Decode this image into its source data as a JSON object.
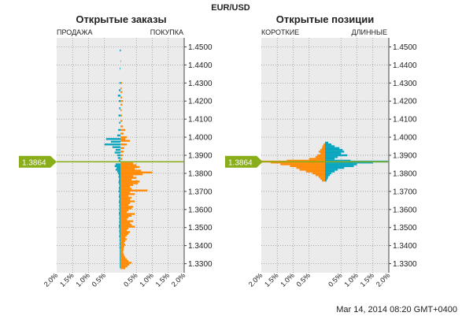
{
  "instrument": "EUR/USD",
  "timestamp": "Mar 14, 2014 08:20 GMT+0400",
  "current_price": "1.3864",
  "colors": {
    "teal": "#0aa5be",
    "orange": "#ff8c0a",
    "price_line": "#8aad1a",
    "panel_bg": "#ebebeb",
    "grid": "#8c8c8c"
  },
  "chart_data": [
    {
      "type": "bar",
      "orientation": "horizontal-diverging",
      "title": "Открытые заказы",
      "left_label": "ПРОДАЖА",
      "right_label": "ПОКУПКА",
      "y_ticks": [
        "1.4500",
        "1.4400",
        "1.4300",
        "1.4200",
        "1.4100",
        "1.4000",
        "1.3900",
        "1.3800",
        "1.3700",
        "1.3600",
        "1.3500",
        "1.3400",
        "1.3300"
      ],
      "x_ticks": [
        "2.0%",
        "1.5%",
        "1.0%",
        "0.5%",
        "0.5%",
        "1.0%",
        "1.5%",
        "2.0%"
      ],
      "ylim": [
        1.325,
        1.455
      ],
      "xlim_percent": [
        0,
        2.0
      ],
      "price_level": 1.3864,
      "grid": true,
      "series": [
        {
          "name": "ПРОДАЖА",
          "comment": "percent per price level, left side",
          "points": [
            [
              1.448,
              0.02
            ],
            [
              1.438,
              0.02
            ],
            [
              1.43,
              0.03
            ],
            [
              1.426,
              0.05
            ],
            [
              1.423,
              0.08
            ],
            [
              1.42,
              0.05
            ],
            [
              1.416,
              0.04
            ],
            [
              1.412,
              0.06
            ],
            [
              1.408,
              0.04
            ],
            [
              1.404,
              0.07
            ],
            [
              1.401,
              0.1
            ],
            [
              1.399,
              0.45
            ],
            [
              1.3975,
              0.3
            ],
            [
              1.396,
              0.5
            ],
            [
              1.3945,
              0.25
            ],
            [
              1.393,
              0.15
            ],
            [
              1.3915,
              0.18
            ],
            [
              1.39,
              0.1
            ],
            [
              1.3885,
              0.08
            ],
            [
              1.387,
              0.05
            ],
            [
              1.385,
              0.15
            ],
            [
              1.384,
              0.18
            ],
            [
              1.383,
              0.12
            ],
            [
              1.382,
              0.15
            ],
            [
              1.381,
              0.1
            ],
            [
              1.38,
              0.08
            ],
            [
              1.379,
              0.05
            ],
            [
              1.378,
              0.06
            ],
            [
              1.377,
              0.04
            ],
            [
              1.376,
              0.05
            ],
            [
              1.375,
              0.06
            ],
            [
              1.374,
              0.04
            ],
            [
              1.373,
              0.03
            ],
            [
              1.372,
              0.05
            ],
            [
              1.371,
              0.04
            ],
            [
              1.37,
              0.06
            ],
            [
              1.369,
              0.03
            ],
            [
              1.368,
              0.04
            ],
            [
              1.367,
              0.05
            ],
            [
              1.366,
              0.03
            ],
            [
              1.365,
              0.04
            ],
            [
              1.364,
              0.05
            ],
            [
              1.363,
              0.03
            ],
            [
              1.362,
              0.04
            ],
            [
              1.361,
              0.03
            ],
            [
              1.36,
              0.04
            ],
            [
              1.359,
              0.03
            ],
            [
              1.358,
              0.05
            ],
            [
              1.357,
              0.04
            ],
            [
              1.356,
              0.03
            ],
            [
              1.355,
              0.04
            ],
            [
              1.354,
              0.03
            ],
            [
              1.353,
              0.04
            ],
            [
              1.352,
              0.03
            ],
            [
              1.351,
              0.05
            ],
            [
              1.35,
              0.04
            ],
            [
              1.349,
              0.03
            ],
            [
              1.348,
              0.04
            ],
            [
              1.347,
              0.03
            ],
            [
              1.346,
              0.03
            ],
            [
              1.345,
              0.04
            ],
            [
              1.344,
              0.02
            ],
            [
              1.343,
              0.03
            ],
            [
              1.342,
              0.02
            ],
            [
              1.341,
              0.03
            ],
            [
              1.34,
              0.02
            ],
            [
              1.339,
              0.03
            ],
            [
              1.338,
              0.02
            ],
            [
              1.337,
              0.02
            ],
            [
              1.336,
              0.02
            ],
            [
              1.335,
              0.02
            ],
            [
              1.334,
              0.02
            ],
            [
              1.333,
              0.02
            ],
            [
              1.332,
              0.02
            ],
            [
              1.331,
              0.02
            ],
            [
              1.33,
              0.02
            ],
            [
              1.329,
              0.02
            ],
            [
              1.328,
              0.02
            ]
          ]
        },
        {
          "name": "ПОКУПКА",
          "comment": "percent per price level, right side",
          "points": [
            [
              1.448,
              0.02
            ],
            [
              1.442,
              0.02
            ],
            [
              1.43,
              0.05
            ],
            [
              1.427,
              0.04
            ],
            [
              1.425,
              0.06
            ],
            [
              1.422,
              0.05
            ],
            [
              1.42,
              0.08
            ],
            [
              1.418,
              0.06
            ],
            [
              1.415,
              0.04
            ],
            [
              1.412,
              0.05
            ],
            [
              1.409,
              0.06
            ],
            [
              1.406,
              0.08
            ],
            [
              1.404,
              0.15
            ],
            [
              1.402,
              0.1
            ],
            [
              1.4,
              0.2
            ],
            [
              1.399,
              0.15
            ],
            [
              1.398,
              0.3
            ],
            [
              1.396,
              0.2
            ],
            [
              1.394,
              0.12
            ],
            [
              1.392,
              0.1
            ],
            [
              1.39,
              0.08
            ],
            [
              1.388,
              0.06
            ],
            [
              1.3855,
              0.4
            ],
            [
              1.3845,
              0.5
            ],
            [
              1.3835,
              0.6
            ],
            [
              1.3825,
              0.45
            ],
            [
              1.3815,
              0.65
            ],
            [
              1.3805,
              1.0
            ],
            [
              1.3795,
              0.7
            ],
            [
              1.3785,
              0.4
            ],
            [
              1.3775,
              0.5
            ],
            [
              1.3765,
              0.35
            ],
            [
              1.3755,
              0.6
            ],
            [
              1.3745,
              0.55
            ],
            [
              1.3735,
              0.4
            ],
            [
              1.3725,
              0.3
            ],
            [
              1.3715,
              0.35
            ],
            [
              1.3705,
              0.85
            ],
            [
              1.3695,
              0.3
            ],
            [
              1.3685,
              0.45
            ],
            [
              1.3675,
              0.25
            ],
            [
              1.3665,
              0.35
            ],
            [
              1.3655,
              0.3
            ],
            [
              1.3645,
              0.45
            ],
            [
              1.3635,
              0.3
            ],
            [
              1.3625,
              0.25
            ],
            [
              1.3615,
              0.4
            ],
            [
              1.3605,
              0.35
            ],
            [
              1.3595,
              0.25
            ],
            [
              1.3585,
              0.2
            ],
            [
              1.3575,
              0.45
            ],
            [
              1.3565,
              0.35
            ],
            [
              1.3555,
              0.25
            ],
            [
              1.3545,
              0.2
            ],
            [
              1.3535,
              0.4
            ],
            [
              1.3525,
              0.3
            ],
            [
              1.3515,
              0.35
            ],
            [
              1.3505,
              0.45
            ],
            [
              1.3495,
              0.25
            ],
            [
              1.3485,
              0.2
            ],
            [
              1.3475,
              0.3
            ],
            [
              1.3465,
              0.25
            ],
            [
              1.3455,
              0.2
            ],
            [
              1.3445,
              0.15
            ],
            [
              1.3435,
              0.2
            ],
            [
              1.3425,
              0.15
            ],
            [
              1.3415,
              0.12
            ],
            [
              1.3405,
              0.15
            ],
            [
              1.3395,
              0.12
            ],
            [
              1.3385,
              0.1
            ],
            [
              1.3375,
              0.1
            ],
            [
              1.3365,
              0.08
            ],
            [
              1.3355,
              0.1
            ],
            [
              1.3345,
              0.12
            ],
            [
              1.3335,
              0.15
            ],
            [
              1.3325,
              0.2
            ],
            [
              1.3315,
              0.25
            ],
            [
              1.3305,
              0.35
            ],
            [
              1.3295,
              0.28
            ],
            [
              1.3285,
              0.22
            ],
            [
              1.3275,
              0.15
            ]
          ]
        }
      ]
    },
    {
      "type": "bar",
      "orientation": "horizontal-diverging",
      "title": "Открытые позиции",
      "left_label": "КОРОТКИЕ",
      "right_label": "ДЛИННЫЕ",
      "y_ticks": [
        "1.4500",
        "1.4400",
        "1.4300",
        "1.4200",
        "1.4100",
        "1.4000",
        "1.3900",
        "1.3800",
        "1.3700",
        "1.3600",
        "1.3500",
        "1.3400",
        "1.3300"
      ],
      "x_ticks": [
        "2.0%",
        "1.5%",
        "1.0%",
        "0.5%",
        "0.5%",
        "1.0%",
        "1.5%",
        "2.0%"
      ],
      "ylim": [
        1.325,
        1.455
      ],
      "xlim_percent": [
        0,
        2.0
      ],
      "price_level": 1.3864,
      "grid": true,
      "series": [
        {
          "name": "КОРОТКИЕ",
          "points": [
            [
              1.396,
              0.05
            ],
            [
              1.395,
              0.08
            ],
            [
              1.394,
              0.1
            ],
            [
              1.393,
              0.15
            ],
            [
              1.392,
              0.2
            ],
            [
              1.391,
              0.15
            ],
            [
              1.39,
              0.25
            ],
            [
              1.389,
              0.3
            ],
            [
              1.388,
              0.5
            ],
            [
              1.387,
              1.2
            ],
            [
              1.3865,
              2.0
            ],
            [
              1.386,
              1.7
            ],
            [
              1.385,
              1.4
            ],
            [
              1.384,
              1.1
            ],
            [
              1.383,
              0.9
            ],
            [
              1.382,
              0.8
            ],
            [
              1.381,
              0.6
            ],
            [
              1.38,
              0.4
            ],
            [
              1.379,
              0.3
            ],
            [
              1.378,
              0.2
            ],
            [
              1.377,
              0.15
            ],
            [
              1.376,
              0.1
            ]
          ]
        },
        {
          "name": "ДЛИННЫЕ",
          "points": [
            [
              1.397,
              0.1
            ],
            [
              1.396,
              0.2
            ],
            [
              1.395,
              0.3
            ],
            [
              1.394,
              0.45
            ],
            [
              1.393,
              0.55
            ],
            [
              1.392,
              0.6
            ],
            [
              1.391,
              0.5
            ],
            [
              1.39,
              0.7
            ],
            [
              1.389,
              0.4
            ],
            [
              1.388,
              0.3
            ],
            [
              1.387,
              0.8
            ],
            [
              1.3865,
              2.0
            ],
            [
              1.386,
              1.5
            ],
            [
              1.385,
              1.0
            ],
            [
              1.384,
              0.9
            ],
            [
              1.383,
              0.6
            ],
            [
              1.382,
              0.4
            ],
            [
              1.381,
              0.3
            ],
            [
              1.38,
              0.2
            ],
            [
              1.379,
              0.15
            ],
            [
              1.378,
              0.1
            ],
            [
              1.377,
              0.08
            ],
            [
              1.376,
              0.05
            ]
          ]
        }
      ]
    }
  ]
}
